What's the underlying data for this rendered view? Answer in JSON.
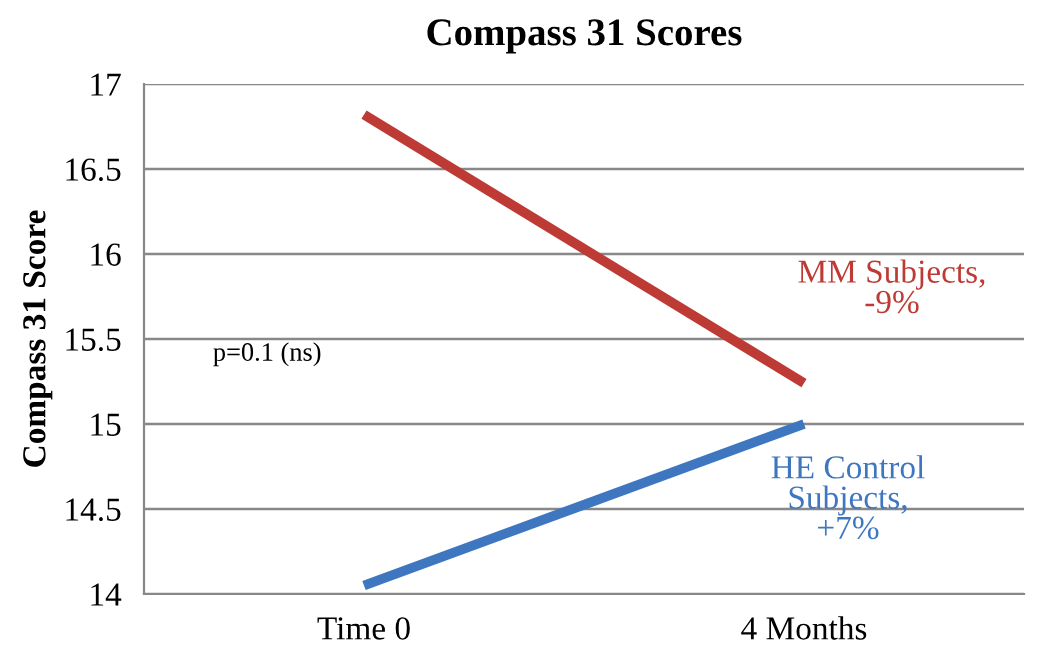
{
  "chart_data": {
    "type": "line",
    "title": "Compass 31 Scores",
    "ylabel": "Compass 31 Score",
    "categories": [
      "Time 0",
      "4 Months"
    ],
    "series": [
      {
        "name": "MM Subjects,\n-9%",
        "color": "#be3a34",
        "values": [
          16.82,
          15.24
        ]
      },
      {
        "name": "HE Control\nSubjects,\n+7%",
        "color": "#3e77c0",
        "values": [
          14.05,
          15.0
        ]
      }
    ],
    "ylim": [
      14,
      17
    ],
    "yticks": [
      14,
      14.5,
      15,
      15.5,
      16,
      16.5,
      17
    ],
    "grid": "y",
    "legend": false,
    "marker": "none",
    "line_style": "solid",
    "annotations": [
      "p=0.1 (ns)"
    ]
  }
}
